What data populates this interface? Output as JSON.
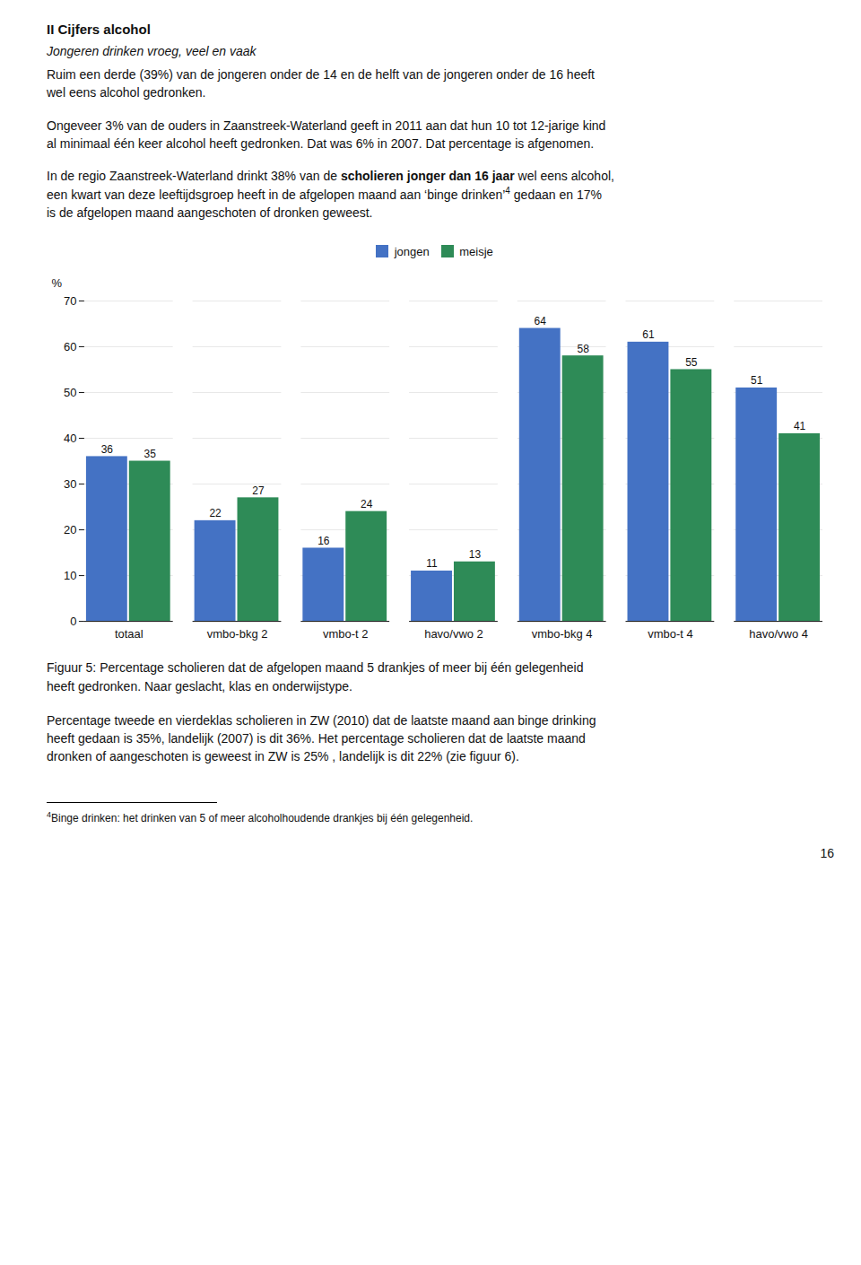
{
  "chart_data": {
    "type": "bar",
    "title": "II Cijfers alcohol",
    "subtitle": "Jongeren drinken vroeg, veel en vaak",
    "annotations": [
      [
        [
          "Ruim een derde (39%) van de jongeren onder de 14 en de helft van de jongeren onder de 16 heeft\nwel eens alcohol gedronken."
        ]
      ],
      [
        [
          "Ongeveer 3% van de ouders in Zaanstreek-Waterland geeft in 2011 aan dat hun 10 tot 12-jarige kind\nal minimaal één keer alcohol heeft gedronken. Dat was 6% in 2007. Dat percentage is afgenomen."
        ]
      ],
      [
        [
          "In de regio Zaanstreek-Waterland drinkt 38% van de ",
          "scholieren jonger dan 16 jaar",
          " wel eens alcohol,"
        ],
        [
          "een kwart van deze leeftijdsgroep heeft in de afgelopen maand aan ‘binge drinken’",
          "4",
          " gedaan en 17%"
        ],
        [
          "is de afgelopen maand aangeschoten of dronken geweest."
        ]
      ],
      [
        [
          "Percentage tweede en vierdeklas scholieren in ZW (2010) dat de laatste maand aan binge drinking\nheeft gedaan is 35%, landelijk (2007) is dit 36%. Het percentage scholieren dat de laatste maand\ndronken of aangeschoten is geweest in ZW is 25% , landelijk is dit 22% (zie figuur 6)."
        ]
      ],
      [
        [
          "4",
          "Binge drinken: het drinken van 5 of meer alcoholhoudende drankjes bij één gelegenheid."
        ]
      ],
      [
        [
          "16"
        ]
      ]
    ],
    "caption": "Figuur 5: Percentage scholieren dat de afgelopen maand 5 drankjes of meer bij één gelegenheid\nheeft gedronken. Naar geslacht, klas en onderwijstype.",
    "categories": [
      "totaal",
      "vmbo-bkg 2",
      "vmbo-t 2",
      "havo/vwo 2",
      "vmbo-bkg 4",
      "vmbo-t 4",
      "havo/vwo 4"
    ],
    "series": [
      {
        "name": "jongen",
        "color": "#4472C4",
        "values": [
          36,
          22,
          16,
          11,
          64,
          61,
          51
        ]
      },
      {
        "name": "meisje",
        "color": "#2E8B57",
        "values": [
          35,
          27,
          24,
          13,
          58,
          55,
          41
        ]
      }
    ],
    "ylabel": "%",
    "ylim": [
      0,
      70
    ],
    "yticks": [
      0,
      10,
      20,
      30,
      40,
      50,
      60,
      70
    ],
    "grid": true,
    "legend": "top",
    "data_labels": true
  }
}
